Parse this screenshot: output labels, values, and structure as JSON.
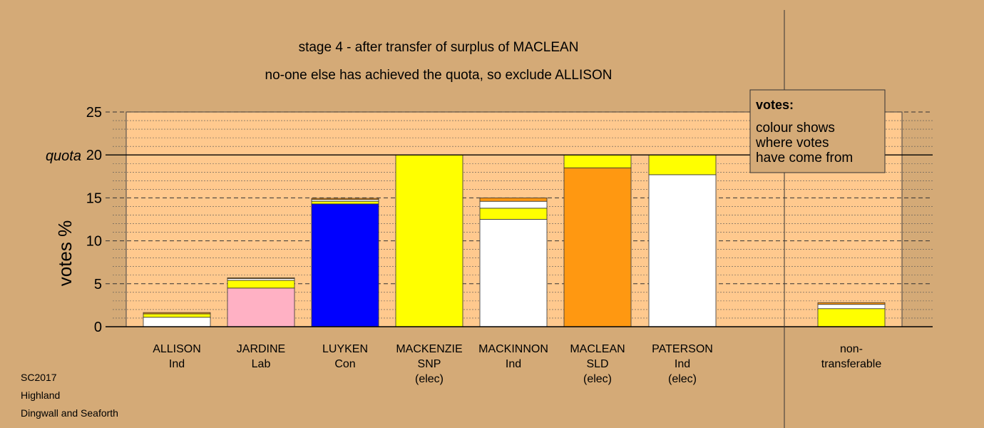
{
  "chart_data": {
    "type": "bar",
    "title": "stage 4 - after transfer of surplus of MACLEAN",
    "subtitle": "no-one else has achieved the quota, so exclude ALLISON",
    "ylabel": "votes %",
    "quota_label": "quota",
    "quota": 20,
    "ylim": [
      0,
      25
    ],
    "yticks": [
      "0",
      "5",
      "10",
      "15",
      "20",
      "25"
    ],
    "grid": true,
    "categories": [
      {
        "lines": [
          "ALLISON",
          "Ind"
        ]
      },
      {
        "lines": [
          "JARDINE",
          "Lab"
        ]
      },
      {
        "lines": [
          "LUYKEN",
          "Con"
        ]
      },
      {
        "lines": [
          "MACKENZIE",
          "SNP",
          "(elec)"
        ]
      },
      {
        "lines": [
          "MACKINNON",
          "Ind"
        ]
      },
      {
        "lines": [
          "MACLEAN",
          "SLD",
          "(elec)"
        ]
      },
      {
        "lines": [
          "PATERSON",
          "Ind",
          "(elec)"
        ]
      },
      {
        "lines": [
          "non-",
          "transferable"
        ]
      }
    ],
    "bars": [
      [
        {
          "value": 1.1,
          "color": "#ffffff"
        },
        {
          "value": 0.4,
          "color": "#ffff00"
        },
        {
          "value": 0.15,
          "color": "#ff9811"
        }
      ],
      [
        {
          "value": 4.5,
          "color": "#ffb1c4"
        },
        {
          "value": 0.9,
          "color": "#ffff00"
        },
        {
          "value": 0.2,
          "color": "#ffffff"
        },
        {
          "value": 0.1,
          "color": "#ff9811"
        }
      ],
      [
        {
          "value": 14.3,
          "color": "#0000ff"
        },
        {
          "value": 0.3,
          "color": "#ffff00"
        },
        {
          "value": 0.2,
          "color": "#ffffff"
        },
        {
          "value": 0.15,
          "color": "#ff9811"
        }
      ],
      [
        {
          "value": 20.0,
          "color": "#ffff00"
        }
      ],
      [
        {
          "value": 12.5,
          "color": "#ffffff"
        },
        {
          "value": 1.3,
          "color": "#ffff00"
        },
        {
          "value": 0.8,
          "color": "#ffffff"
        },
        {
          "value": 0.4,
          "color": "#ff9811"
        }
      ],
      [
        {
          "value": 18.5,
          "color": "#ff9811"
        },
        {
          "value": 1.5,
          "color": "#ffff00"
        }
      ],
      [
        {
          "value": 17.7,
          "color": "#ffffff"
        },
        {
          "value": 2.3,
          "color": "#ffff00"
        }
      ],
      [
        {
          "value": 2.1,
          "color": "#ffff00"
        },
        {
          "value": 0.5,
          "color": "#ffffff"
        },
        {
          "value": 0.2,
          "color": "#ff9811"
        }
      ]
    ],
    "legend": {
      "title": "votes:",
      "lines": [
        "colour shows",
        "where votes",
        "have come from"
      ],
      "position": "top-right"
    }
  },
  "footer": [
    "SC2017",
    "Highland",
    "Dingwall and Seaforth"
  ],
  "colors": {
    "background": "#d4aa77",
    "plot_area": "#ffc98e",
    "legend_box": "#d4aa77"
  }
}
